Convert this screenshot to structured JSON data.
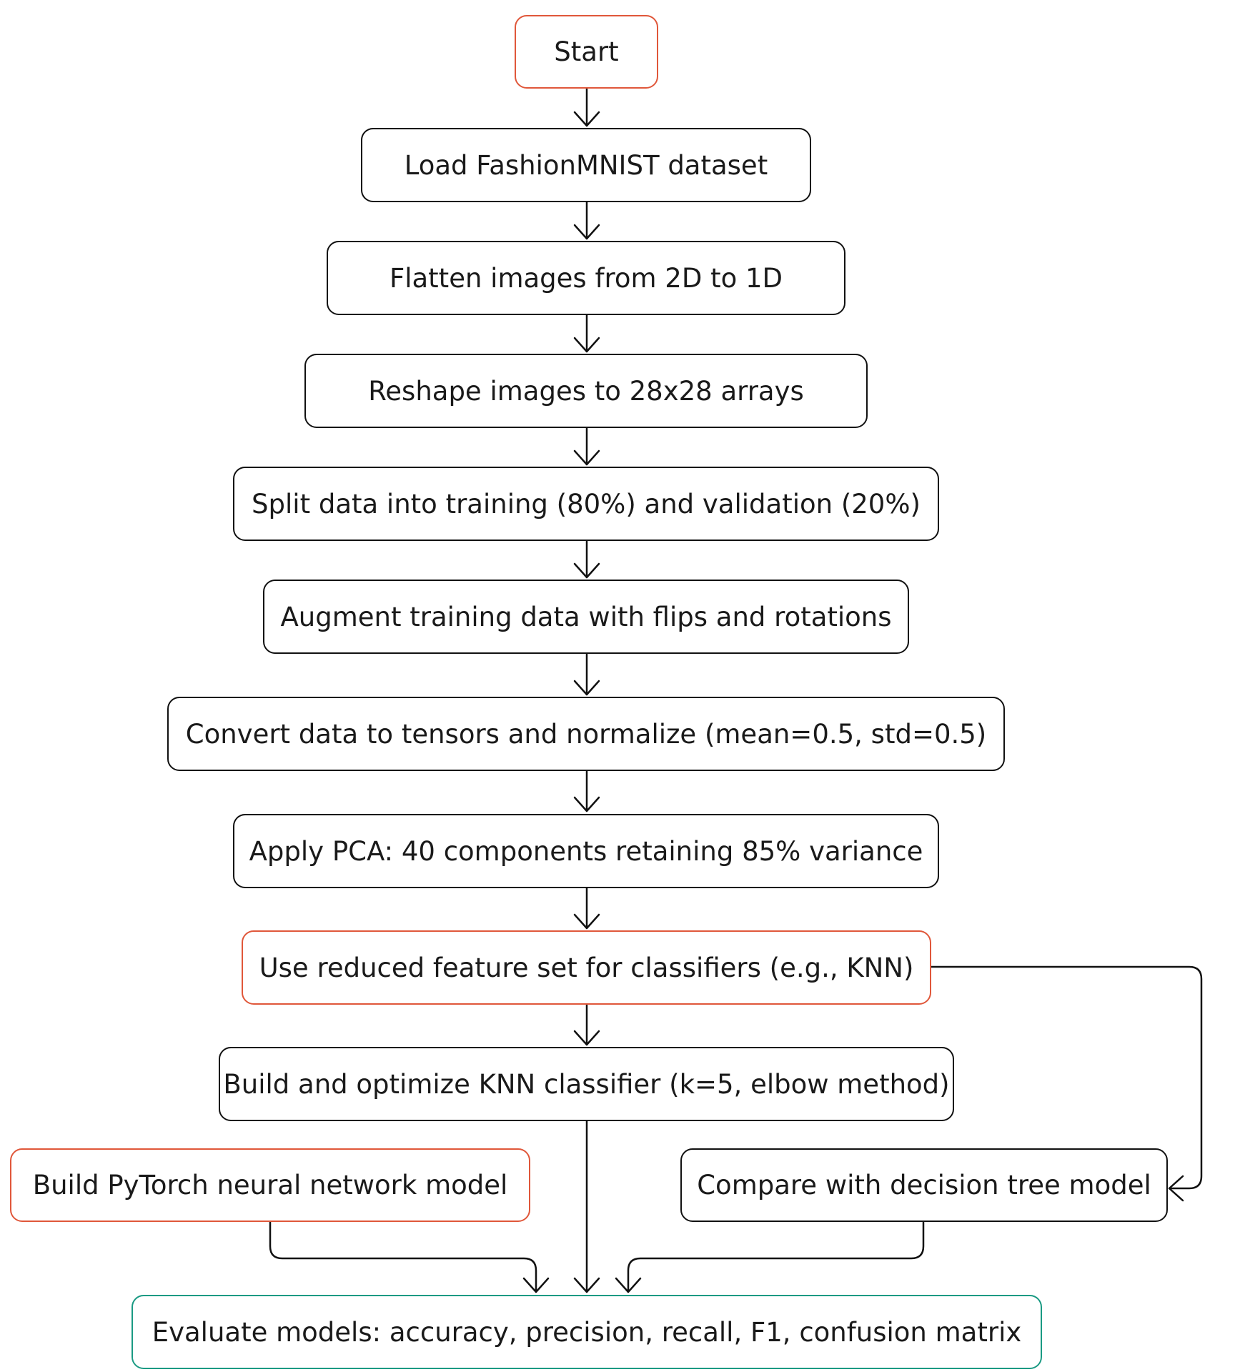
{
  "diagram": {
    "colors": {
      "default_border": "#111111",
      "highlight_border": "#e0573a",
      "final_border": "#1a9a83",
      "edge": "#111111"
    },
    "nodes": {
      "start": "Start",
      "load": "Load FashionMNIST dataset",
      "flatten": "Flatten images from 2D to 1D",
      "reshape": "Reshape images to 28x28 arrays",
      "split": "Split data into training (80%) and validation (20%)",
      "augment": "Augment training data with flips and rotations",
      "convert": "Convert data to tensors and normalize (mean=0.5, std=0.5)",
      "pca": "Apply PCA: 40 components retaining 85% variance",
      "reduced": "Use reduced feature set for classifiers (e.g., KNN)",
      "knn": "Build and optimize KNN classifier (k=5, elbow method)",
      "pytorch": "Build PyTorch neural network model",
      "tree": "Compare with decision tree model",
      "evaluate": "Evaluate models: accuracy, precision, recall, F1, confusion matrix"
    },
    "edges": [
      {
        "from": "start",
        "to": "load"
      },
      {
        "from": "load",
        "to": "flatten"
      },
      {
        "from": "flatten",
        "to": "reshape"
      },
      {
        "from": "reshape",
        "to": "split"
      },
      {
        "from": "split",
        "to": "augment"
      },
      {
        "from": "augment",
        "to": "convert"
      },
      {
        "from": "convert",
        "to": "pca"
      },
      {
        "from": "pca",
        "to": "reduced"
      },
      {
        "from": "reduced",
        "to": "knn"
      },
      {
        "from": "reduced",
        "to": "tree"
      },
      {
        "from": "knn",
        "to": "evaluate"
      },
      {
        "from": "pytorch",
        "to": "evaluate"
      },
      {
        "from": "tree",
        "to": "evaluate"
      }
    ]
  }
}
